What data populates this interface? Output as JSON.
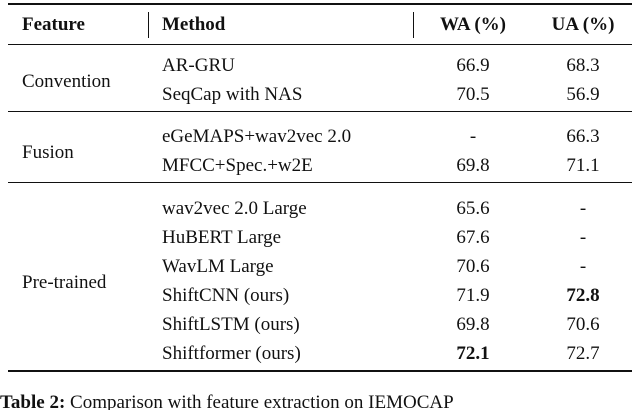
{
  "table": {
    "header": {
      "feature": "Feature",
      "method": "Method",
      "wa": "WA (%)",
      "ua": "UA (%)"
    },
    "groups": [
      {
        "feature": "Convention",
        "rows": [
          {
            "method": "AR-GRU",
            "wa": "66.9",
            "ua": "68.3"
          },
          {
            "method": "SeqCap with NAS",
            "wa": "70.5",
            "ua": "56.9"
          }
        ]
      },
      {
        "feature": "Fusion",
        "rows": [
          {
            "method": "eGeMAPS+wav2vec 2.0",
            "wa": "-",
            "ua": "66.3"
          },
          {
            "method": "MFCC+Spec.+w2E",
            "wa": "69.8",
            "ua": "71.1"
          }
        ]
      },
      {
        "feature": "Pre-trained",
        "rows": [
          {
            "method": "wav2vec 2.0 Large",
            "wa": "65.6",
            "ua": "-"
          },
          {
            "method": "HuBERT Large",
            "wa": "67.6",
            "ua": "-"
          },
          {
            "method": "WavLM Large",
            "wa": "70.6",
            "ua": "-"
          },
          {
            "method": "ShiftCNN (ours)",
            "wa": "71.9",
            "ua": "72.8",
            "bold": [
              "ua"
            ]
          },
          {
            "method": "ShiftLSTM (ours)",
            "wa": "69.8",
            "ua": "70.6"
          },
          {
            "method": "Shiftformer (ours)",
            "wa": "72.1",
            "ua": "72.7",
            "bold": [
              "wa"
            ]
          }
        ]
      }
    ]
  },
  "caption": {
    "label": "Table 2:",
    "text": "Comparison with feature extraction on IEMOCAP"
  }
}
